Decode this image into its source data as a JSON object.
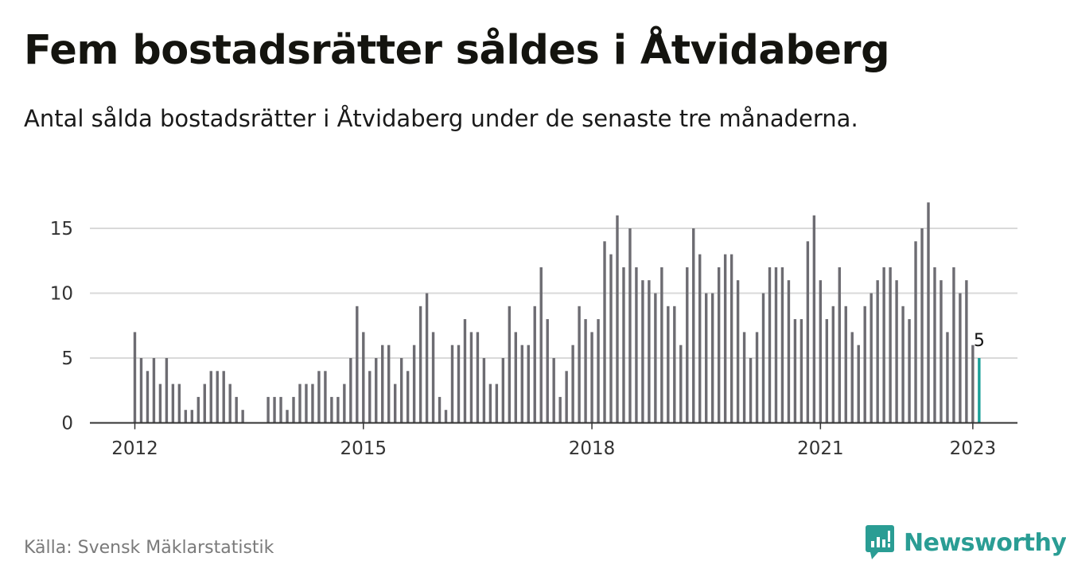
{
  "title": "Fem bostadsrätter såldes i Åtvidaberg",
  "subtitle": "Antal sålda bostadsrätter i Åtvidaberg under de senaste tre månaderna.",
  "source": "Källa: Svensk Mäklarstatistik",
  "brand": {
    "name": "Newsworthy",
    "color": "#2a9d94"
  },
  "colors": {
    "bar": "#6d6c72",
    "highlight": "#1aa099",
    "grid": "#d9d9d9",
    "axis": "#333333"
  },
  "chart_data": {
    "type": "bar",
    "x_start": "2012-01",
    "frequency": "monthly",
    "ylim": [
      0,
      17
    ],
    "yticks": [
      0,
      5,
      10,
      15
    ],
    "xticks": [
      "2012",
      "2015",
      "2018",
      "2021",
      "2023"
    ],
    "grid": true,
    "values": [
      7,
      5,
      4,
      5,
      3,
      5,
      3,
      3,
      1,
      1,
      2,
      3,
      4,
      4,
      4,
      3,
      2,
      1,
      null,
      null,
      null,
      2,
      2,
      2,
      1,
      2,
      3,
      3,
      3,
      4,
      4,
      2,
      2,
      3,
      5,
      9,
      7,
      4,
      5,
      6,
      6,
      3,
      5,
      4,
      6,
      9,
      10,
      7,
      2,
      1,
      6,
      6,
      8,
      7,
      7,
      5,
      3,
      3,
      5,
      9,
      7,
      6,
      6,
      9,
      12,
      8,
      5,
      2,
      4,
      6,
      9,
      8,
      7,
      8,
      14,
      13,
      16,
      12,
      15,
      12,
      11,
      11,
      10,
      12,
      9,
      9,
      6,
      12,
      15,
      13,
      10,
      10,
      12,
      13,
      13,
      11,
      7,
      5,
      7,
      10,
      12,
      12,
      12,
      11,
      8,
      8,
      14,
      16,
      11,
      8,
      9,
      12,
      9,
      7,
      6,
      9,
      10,
      11,
      12,
      12,
      11,
      9,
      8,
      14,
      15,
      17,
      12,
      11,
      7,
      12,
      10,
      11,
      6,
      5
    ],
    "highlight_last": true,
    "last_value_label": "5"
  }
}
